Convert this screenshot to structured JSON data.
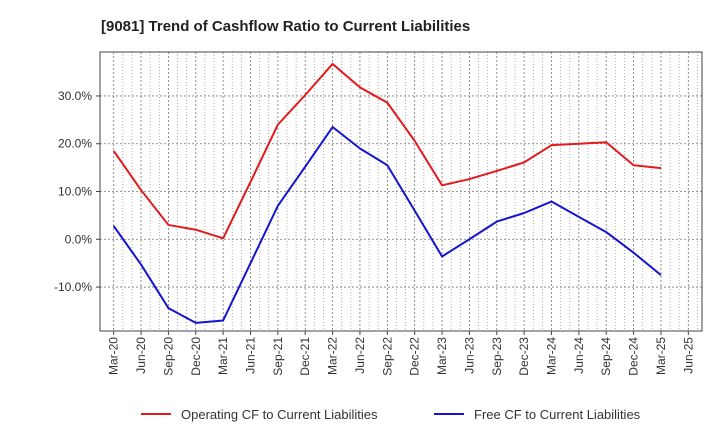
{
  "chart_data": {
    "type": "line",
    "title": "[9081]  Trend of Cashflow Ratio to Current Liabilities",
    "x": [
      "Mar-20",
      "Jun-20",
      "Sep-20",
      "Dec-20",
      "Mar-21",
      "Jun-21",
      "Sep-21",
      "Dec-21",
      "Mar-22",
      "Jun-22",
      "Sep-22",
      "Dec-22",
      "Mar-23",
      "Jun-23",
      "Sep-23",
      "Dec-23",
      "Mar-24",
      "Jun-24",
      "Sep-24",
      "Dec-24",
      "Mar-25",
      "Jun-25"
    ],
    "y_ticks": [
      -10,
      0,
      10,
      20,
      30
    ],
    "y_tick_labels": [
      "-10.0%",
      "0.0%",
      "10.0%",
      "20.0%",
      "30.0%"
    ],
    "ylim": [
      -19.2,
      39.2
    ],
    "grid": true,
    "legend_position": "bottom",
    "series": [
      {
        "name": "Operating CF to Current Liabilities",
        "color": "#e31a1c",
        "values": [
          18.5,
          10.3,
          3.0,
          2.0,
          0.2,
          12.0,
          24.0,
          30.2,
          36.7,
          31.8,
          28.6,
          20.6,
          11.3,
          12.6,
          14.3,
          16.1,
          19.7,
          20.0,
          20.3,
          15.5,
          14.9,
          null
        ]
      },
      {
        "name": "Free CF to Current Liabilities",
        "color": "#1515d0",
        "values": [
          2.8,
          -5.3,
          -14.4,
          -17.5,
          -17.0,
          -5.0,
          7.0,
          15.2,
          23.5,
          19.0,
          15.5,
          6.0,
          -3.6,
          0.0,
          3.7,
          5.5,
          7.9,
          4.7,
          1.5,
          -2.8,
          -7.5,
          null
        ]
      }
    ]
  }
}
